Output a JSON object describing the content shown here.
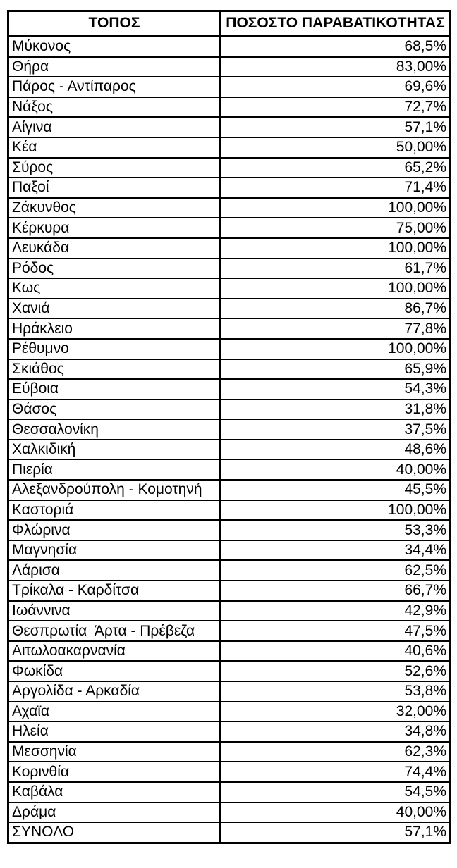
{
  "colors": {
    "background": "#ffffff",
    "text": "#000000",
    "border": "#000000"
  },
  "chart_data": {
    "type": "table",
    "columns": [
      "ΤΟΠΟΣ",
      "ΠΟΣΟΣΤΟ ΠΑΡΑΒΑΤΙΚΟΤΗΤΑΣ"
    ],
    "rows": [
      [
        "Μύκονος",
        "68,5%"
      ],
      [
        "Θήρα",
        "83,00%"
      ],
      [
        "Πάρος - Αντίπαρος",
        "69,6%"
      ],
      [
        "Νάξος",
        "72,7%"
      ],
      [
        "Αίγινα",
        "57,1%"
      ],
      [
        "Κέα",
        "50,00%"
      ],
      [
        "Σύρος",
        "65,2%"
      ],
      [
        "Παξοί",
        "71,4%"
      ],
      [
        "Ζάκυνθος",
        "100,00%"
      ],
      [
        "Κέρκυρα",
        "75,00%"
      ],
      [
        "Λευκάδα",
        "100,00%"
      ],
      [
        "Ρόδος",
        "61,7%"
      ],
      [
        "Κως",
        "100,00%"
      ],
      [
        "Χανιά",
        "86,7%"
      ],
      [
        "Ηράκλειο",
        "77,8%"
      ],
      [
        "Ρέθυμνο",
        "100,00%"
      ],
      [
        "Σκιάθος",
        "65,9%"
      ],
      [
        "Εύβοια",
        "54,3%"
      ],
      [
        "Θάσος",
        "31,8%"
      ],
      [
        "Θεσσαλονίκη",
        "37,5%"
      ],
      [
        "Χαλκιδική",
        "48,6%"
      ],
      [
        "Πιερία",
        "40,00%"
      ],
      [
        "Αλεξανδρούπολη - Κομοτηνή",
        "45,5%"
      ],
      [
        "Καστοριά",
        "100,00%"
      ],
      [
        "Φλώρινα",
        "53,3%"
      ],
      [
        "Μαγνησία",
        "34,4%"
      ],
      [
        "Λάρισα",
        "62,5%"
      ],
      [
        "Τρίκαλα - Καρδίτσα",
        "66,7%"
      ],
      [
        "Ιωάννινα",
        "42,9%"
      ],
      [
        "Θεσπρωτία  Άρτα - Πρέβεζα",
        "47,5%"
      ],
      [
        "Αιτωλοακαρνανία",
        "40,6%"
      ],
      [
        "Φωκίδα",
        "52,6%"
      ],
      [
        "Αργολίδα - Αρκαδία",
        "53,8%"
      ],
      [
        "Αχαϊα",
        "32,00%"
      ],
      [
        "Ηλεία",
        "34,8%"
      ],
      [
        "Μεσσηνία",
        "62,3%"
      ],
      [
        "Κορινθία",
        "74,4%"
      ],
      [
        "Καβάλα",
        "54,5%"
      ],
      [
        "Δράμα",
        "40,00%"
      ],
      [
        "ΣΥΝΟΛΟ",
        "57,1%"
      ]
    ]
  }
}
